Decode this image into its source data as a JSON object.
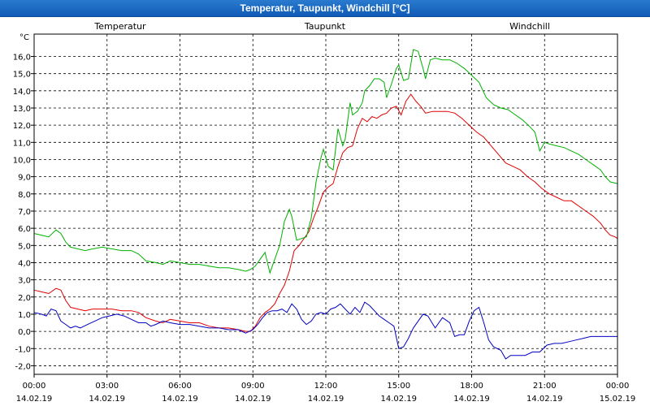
{
  "window": {
    "title": "Temperatur, Taupunkt, Windchill [°C]"
  },
  "colors": {
    "grid": "#000000",
    "frame": "#000000",
    "titlebar": "#1a6bc7"
  },
  "chart_data": {
    "type": "line",
    "unit_label": "°C",
    "ylim": [
      -2.5,
      17.3
    ],
    "yticks": [
      -2,
      -1,
      0,
      1,
      2,
      3,
      4,
      5,
      6,
      7,
      8,
      9,
      10,
      11,
      12,
      13,
      14,
      15,
      16
    ],
    "ytick_labels": [
      "-2,0",
      "-1,0",
      "0,0",
      "1,0",
      "2,0",
      "3,0",
      "4,0",
      "5,0",
      "6,0",
      "7,0",
      "8,0",
      "9,0",
      "10,0",
      "11,0",
      "12,0",
      "13,0",
      "14,0",
      "15,0",
      "16,0"
    ],
    "xlim": [
      0,
      24
    ],
    "xticks": [
      {
        "x": 0,
        "time": "00:00",
        "date": "14.02.19"
      },
      {
        "x": 3,
        "time": "03:00",
        "date": "14.02.19"
      },
      {
        "x": 6,
        "time": "06:00",
        "date": "14.02.19"
      },
      {
        "x": 9,
        "time": "09:00",
        "date": "14.02.19"
      },
      {
        "x": 12,
        "time": "12:00",
        "date": "14.02.19"
      },
      {
        "x": 15,
        "time": "15:00",
        "date": "14.02.19"
      },
      {
        "x": 18,
        "time": "18:00",
        "date": "14.02.19"
      },
      {
        "x": 21,
        "time": "21:00",
        "date": "14.02.19"
      },
      {
        "x": 24,
        "time": "00:00",
        "date": "15.02.19"
      }
    ],
    "grid": true,
    "legend_position": "top",
    "series": [
      {
        "name": "Temperatur",
        "color": "#e00000",
        "points": [
          [
            0,
            2.4
          ],
          [
            0.3,
            2.3
          ],
          [
            0.6,
            2.2
          ],
          [
            0.9,
            2.5
          ],
          [
            1.1,
            2.4
          ],
          [
            1.3,
            1.8
          ],
          [
            1.5,
            1.4
          ],
          [
            1.8,
            1.3
          ],
          [
            2.1,
            1.2
          ],
          [
            2.4,
            1.3
          ],
          [
            2.8,
            1.3
          ],
          [
            3.2,
            1.3
          ],
          [
            3.6,
            1.2
          ],
          [
            4,
            1.2
          ],
          [
            4.3,
            1.1
          ],
          [
            4.6,
            0.8
          ],
          [
            5,
            0.6
          ],
          [
            5.3,
            0.5
          ],
          [
            5.6,
            0.7
          ],
          [
            6,
            0.6
          ],
          [
            6.4,
            0.5
          ],
          [
            6.8,
            0.5
          ],
          [
            7.2,
            0.3
          ],
          [
            7.6,
            0.2
          ],
          [
            8,
            0.2
          ],
          [
            8.4,
            0.1
          ],
          [
            8.7,
            0
          ],
          [
            8.9,
            0
          ],
          [
            9.1,
            0.3
          ],
          [
            9.3,
            0.8
          ],
          [
            9.5,
            1.1
          ],
          [
            9.7,
            1.3
          ],
          [
            9.9,
            1.6
          ],
          [
            10.1,
            2.2
          ],
          [
            10.3,
            2.7
          ],
          [
            10.5,
            3.5
          ],
          [
            10.7,
            4.7
          ],
          [
            10.9,
            5
          ],
          [
            11.1,
            5.4
          ],
          [
            11.3,
            5.8
          ],
          [
            11.5,
            6.6
          ],
          [
            11.7,
            7.3
          ],
          [
            11.9,
            8.1
          ],
          [
            12.1,
            8.4
          ],
          [
            12.3,
            8.6
          ],
          [
            12.5,
            9.6
          ],
          [
            12.7,
            10.4
          ],
          [
            12.9,
            10.7
          ],
          [
            13.1,
            10.8
          ],
          [
            13.3,
            11.8
          ],
          [
            13.5,
            12.4
          ],
          [
            13.7,
            12.2
          ],
          [
            13.9,
            12.5
          ],
          [
            14.1,
            12.4
          ],
          [
            14.3,
            12.6
          ],
          [
            14.5,
            12.7
          ],
          [
            14.7,
            13
          ],
          [
            14.9,
            13.1
          ],
          [
            15.1,
            12.6
          ],
          [
            15.3,
            13.4
          ],
          [
            15.5,
            13.8
          ],
          [
            15.7,
            13.4
          ],
          [
            15.9,
            13.1
          ],
          [
            16.1,
            12.7
          ],
          [
            16.4,
            12.8
          ],
          [
            16.7,
            12.8
          ],
          [
            17,
            12.8
          ],
          [
            17.3,
            12.7
          ],
          [
            17.6,
            12.4
          ],
          [
            17.9,
            12
          ],
          [
            18.2,
            11.6
          ],
          [
            18.5,
            11.3
          ],
          [
            18.8,
            10.8
          ],
          [
            19.1,
            10.3
          ],
          [
            19.4,
            9.8
          ],
          [
            19.7,
            9.6
          ],
          [
            20,
            9.4
          ],
          [
            20.3,
            9
          ],
          [
            20.6,
            8.7
          ],
          [
            20.9,
            8.3
          ],
          [
            21.2,
            8
          ],
          [
            21.5,
            7.8
          ],
          [
            21.8,
            7.6
          ],
          [
            22.1,
            7.6
          ],
          [
            22.4,
            7.3
          ],
          [
            22.7,
            7
          ],
          [
            23,
            6.7
          ],
          [
            23.3,
            6.3
          ],
          [
            23.5,
            5.9
          ],
          [
            23.7,
            5.6
          ],
          [
            23.9,
            5.5
          ],
          [
            24,
            5.4
          ]
        ]
      },
      {
        "name": "Taupunkt",
        "color": "#0000c0",
        "points": [
          [
            0,
            1.1
          ],
          [
            0.3,
            1.0
          ],
          [
            0.5,
            0.9
          ],
          [
            0.7,
            1.3
          ],
          [
            0.9,
            1.2
          ],
          [
            1.1,
            0.6
          ],
          [
            1.3,
            0.4
          ],
          [
            1.5,
            0.2
          ],
          [
            1.7,
            0.3
          ],
          [
            1.9,
            0.2
          ],
          [
            2.2,
            0.4
          ],
          [
            2.5,
            0.6
          ],
          [
            2.8,
            0.8
          ],
          [
            3.1,
            0.9
          ],
          [
            3.4,
            1
          ],
          [
            3.7,
            0.9
          ],
          [
            4,
            0.7
          ],
          [
            4.3,
            0.5
          ],
          [
            4.6,
            0.5
          ],
          [
            4.8,
            0.3
          ],
          [
            5,
            0.4
          ],
          [
            5.3,
            0.6
          ],
          [
            5.6,
            0.5
          ],
          [
            6,
            0.4
          ],
          [
            6.4,
            0.4
          ],
          [
            6.8,
            0.3
          ],
          [
            7.2,
            0.2
          ],
          [
            7.6,
            0.2
          ],
          [
            8,
            0.1
          ],
          [
            8.4,
            0.1
          ],
          [
            8.7,
            -0.1
          ],
          [
            9,
            0.1
          ],
          [
            9.2,
            0.4
          ],
          [
            9.4,
            0.8
          ],
          [
            9.6,
            1.1
          ],
          [
            9.8,
            1.2
          ],
          [
            10,
            1.2
          ],
          [
            10.2,
            1.3
          ],
          [
            10.4,
            1.1
          ],
          [
            10.6,
            1.6
          ],
          [
            10.8,
            1.3
          ],
          [
            11,
            0.7
          ],
          [
            11.2,
            0.4
          ],
          [
            11.4,
            0.6
          ],
          [
            11.6,
            1
          ],
          [
            11.8,
            1.1
          ],
          [
            12,
            1
          ],
          [
            12.2,
            1.3
          ],
          [
            12.4,
            1.4
          ],
          [
            12.6,
            1.6
          ],
          [
            12.8,
            1.3
          ],
          [
            13,
            1
          ],
          [
            13.2,
            1.4
          ],
          [
            13.4,
            1.1
          ],
          [
            13.6,
            1.7
          ],
          [
            13.8,
            1.5
          ],
          [
            14,
            1.2
          ],
          [
            14.2,
            0.9
          ],
          [
            14.4,
            0.7
          ],
          [
            14.6,
            0.5
          ],
          [
            14.8,
            0.3
          ],
          [
            15,
            -1
          ],
          [
            15.2,
            -0.9
          ],
          [
            15.4,
            -0.4
          ],
          [
            15.6,
            0.2
          ],
          [
            15.8,
            0.6
          ],
          [
            16,
            1
          ],
          [
            16.2,
            0.9
          ],
          [
            16.5,
            0.2
          ],
          [
            16.8,
            0.8
          ],
          [
            17.1,
            0.5
          ],
          [
            17.3,
            -0.3
          ],
          [
            17.5,
            -0.2
          ],
          [
            17.7,
            -0.2
          ],
          [
            17.9,
            0.6
          ],
          [
            18.1,
            1.2
          ],
          [
            18.3,
            1.4
          ],
          [
            18.5,
            0.5
          ],
          [
            18.7,
            -0.5
          ],
          [
            18.9,
            -0.9
          ],
          [
            19.2,
            -1.1
          ],
          [
            19.4,
            -1.6
          ],
          [
            19.6,
            -1.4
          ],
          [
            19.9,
            -1.4
          ],
          [
            20.2,
            -1.4
          ],
          [
            20.5,
            -1.2
          ],
          [
            20.8,
            -1.2
          ],
          [
            21.1,
            -0.8
          ],
          [
            21.4,
            -0.7
          ],
          [
            21.7,
            -0.7
          ],
          [
            22,
            -0.6
          ],
          [
            22.3,
            -0.5
          ],
          [
            22.6,
            -0.4
          ],
          [
            22.9,
            -0.3
          ],
          [
            23.2,
            -0.3
          ],
          [
            23.5,
            -0.3
          ],
          [
            24,
            -0.3
          ]
        ]
      },
      {
        "name": "Windchill",
        "color": "#00b000",
        "points": [
          [
            0,
            5.7
          ],
          [
            0.3,
            5.6
          ],
          [
            0.6,
            5.5
          ],
          [
            0.9,
            5.9
          ],
          [
            1.1,
            5.7
          ],
          [
            1.3,
            5.2
          ],
          [
            1.5,
            4.9
          ],
          [
            1.8,
            4.8
          ],
          [
            2.1,
            4.7
          ],
          [
            2.4,
            4.8
          ],
          [
            2.8,
            4.9
          ],
          [
            3.2,
            4.8
          ],
          [
            3.6,
            4.7
          ],
          [
            4,
            4.7
          ],
          [
            4.3,
            4.5
          ],
          [
            4.6,
            4.1
          ],
          [
            5,
            4
          ],
          [
            5.3,
            3.9
          ],
          [
            5.6,
            4.1
          ],
          [
            6,
            4
          ],
          [
            6.4,
            3.9
          ],
          [
            6.8,
            3.9
          ],
          [
            7.2,
            3.8
          ],
          [
            7.6,
            3.7
          ],
          [
            8,
            3.7
          ],
          [
            8.4,
            3.6
          ],
          [
            8.7,
            3.5
          ],
          [
            8.9,
            3.6
          ],
          [
            9.1,
            3.8
          ],
          [
            9.3,
            4.2
          ],
          [
            9.5,
            4.6
          ],
          [
            9.7,
            3.4
          ],
          [
            9.9,
            4.2
          ],
          [
            10.1,
            5
          ],
          [
            10.3,
            6.4
          ],
          [
            10.5,
            7.1
          ],
          [
            10.6,
            6.7
          ],
          [
            10.8,
            5.3
          ],
          [
            11,
            5.4
          ],
          [
            11.2,
            5.5
          ],
          [
            11.4,
            6.6
          ],
          [
            11.6,
            8.7
          ],
          [
            11.8,
            10.1
          ],
          [
            11.9,
            10.6
          ],
          [
            12.1,
            9.6
          ],
          [
            12.3,
            9.4
          ],
          [
            12.5,
            11.8
          ],
          [
            12.7,
            10.8
          ],
          [
            12.8,
            11.2
          ],
          [
            13,
            13.3
          ],
          [
            13.1,
            12.6
          ],
          [
            13.3,
            12.8
          ],
          [
            13.5,
            13.3
          ],
          [
            13.6,
            14
          ],
          [
            13.8,
            14.3
          ],
          [
            14,
            14.7
          ],
          [
            14.2,
            14.7
          ],
          [
            14.4,
            14.5
          ],
          [
            14.5,
            13.6
          ],
          [
            14.7,
            14.4
          ],
          [
            14.9,
            15.3
          ],
          [
            15,
            15.5
          ],
          [
            15.2,
            14.6
          ],
          [
            15.4,
            14.7
          ],
          [
            15.6,
            16.4
          ],
          [
            15.8,
            16.3
          ],
          [
            16,
            15.3
          ],
          [
            16.1,
            14.7
          ],
          [
            16.3,
            15.8
          ],
          [
            16.5,
            15.9
          ],
          [
            16.8,
            15.8
          ],
          [
            17.1,
            15.8
          ],
          [
            17.4,
            15.6
          ],
          [
            17.7,
            15.3
          ],
          [
            18,
            14.9
          ],
          [
            18.3,
            14.5
          ],
          [
            18.6,
            13.6
          ],
          [
            18.9,
            13.2
          ],
          [
            19.2,
            13
          ],
          [
            19.5,
            12.9
          ],
          [
            19.8,
            12.6
          ],
          [
            20.1,
            12.3
          ],
          [
            20.4,
            11.9
          ],
          [
            20.6,
            11.6
          ],
          [
            20.8,
            10.5
          ],
          [
            21,
            11.0
          ],
          [
            21.2,
            10.9
          ],
          [
            21.5,
            10.8
          ],
          [
            21.8,
            10.7
          ],
          [
            22.1,
            10.5
          ],
          [
            22.4,
            10.3
          ],
          [
            22.7,
            10
          ],
          [
            23,
            9.7
          ],
          [
            23.3,
            9.4
          ],
          [
            23.5,
            9
          ],
          [
            23.7,
            8.7
          ],
          [
            24,
            8.6
          ]
        ]
      }
    ]
  }
}
